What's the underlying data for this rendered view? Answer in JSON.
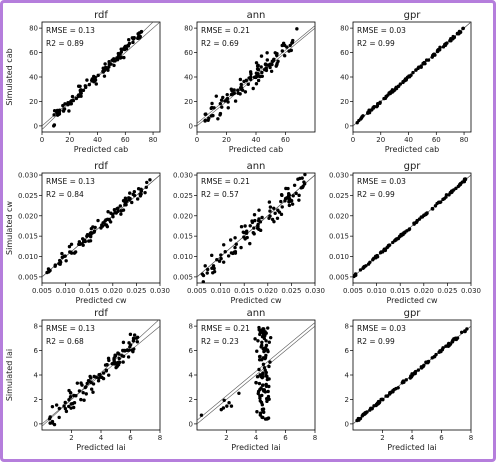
{
  "chart_data": [
    {
      "id": "cab-rdf",
      "type": "scatter",
      "title": "rdf",
      "xlabel": "Predicted cab",
      "ylabel": "Simulated cab",
      "xlim": [
        0,
        85
      ],
      "ylim": [
        -5,
        85
      ],
      "xticks": [
        0,
        20,
        40,
        60,
        80
      ],
      "yticks": [
        0,
        20,
        40,
        60,
        80
      ],
      "rmse": "RMSE = 0.13",
      "r2": "R2 = 0.89",
      "fit": {
        "slope": 1.1,
        "intercept": -3
      },
      "seed": 11,
      "spread": 0.09,
      "range": [
        8,
        72
      ],
      "n": 110
    },
    {
      "id": "cab-ann",
      "type": "scatter",
      "title": "ann",
      "xlabel": "Predicted cab",
      "ylabel": "",
      "xlim": [
        0,
        80
      ],
      "ylim": [
        -5,
        85
      ],
      "xticks": [
        0,
        20,
        40,
        60
      ],
      "yticks": [
        0,
        20,
        40,
        60,
        80
      ],
      "rmse": "RMSE = 0.21",
      "r2": "R2 = 0.69",
      "fit": {
        "slope": 1.0,
        "intercept": 2
      },
      "seed": 23,
      "spread": 0.16,
      "range": [
        5,
        68
      ],
      "n": 110
    },
    {
      "id": "cab-gpr",
      "type": "scatter",
      "title": "gpr",
      "xlabel": "Predicted cab",
      "ylabel": "",
      "xlim": [
        0,
        85
      ],
      "ylim": [
        -5,
        85
      ],
      "xticks": [
        0,
        20,
        40,
        60,
        80
      ],
      "yticks": [
        0,
        20,
        40,
        60,
        80
      ],
      "rmse": "RMSE = 0.03",
      "r2": "R2 = 0.99",
      "fit": {
        "slope": 1.0,
        "intercept": 0
      },
      "seed": 31,
      "spread": 0.02,
      "range": [
        3,
        80
      ],
      "n": 110
    },
    {
      "id": "cw-rdf",
      "type": "scatter",
      "title": "rdf",
      "xlabel": "Predicted cw",
      "ylabel": "Simulated cw",
      "xlim": [
        0.005,
        0.03
      ],
      "ylim": [
        0.0035,
        0.0305
      ],
      "xticks": [
        0.005,
        0.01,
        0.015,
        0.02,
        0.025,
        0.03
      ],
      "yticks": [
        0.005,
        0.01,
        0.015,
        0.02,
        0.025,
        0.03
      ],
      "rmse": "RMSE = 0.13",
      "r2": "R2 = 0.84",
      "fit": {
        "slope": 1.0,
        "intercept": 0
      },
      "seed": 41,
      "spread": 0.1,
      "range": [
        0.006,
        0.028
      ],
      "n": 110
    },
    {
      "id": "cw-ann",
      "type": "scatter",
      "title": "ann",
      "xlabel": "Predicted cw",
      "ylabel": "",
      "xlim": [
        0.005,
        0.03
      ],
      "ylim": [
        0.0035,
        0.0305
      ],
      "xticks": [
        0.005,
        0.01,
        0.015,
        0.02,
        0.025,
        0.03
      ],
      "yticks": [
        0.005,
        0.01,
        0.015,
        0.02,
        0.025,
        0.03
      ],
      "rmse": "RMSE = 0.21",
      "r2": "R2 = 0.57",
      "fit": {
        "slope": 1.0,
        "intercept": 0
      },
      "seed": 53,
      "spread": 0.17,
      "range": [
        0.006,
        0.028
      ],
      "n": 110
    },
    {
      "id": "cw-gpr",
      "type": "scatter",
      "title": "gpr",
      "xlabel": "Predicted cw",
      "ylabel": "",
      "xlim": [
        0.005,
        0.03
      ],
      "ylim": [
        0.0035,
        0.0305
      ],
      "xticks": [
        0.005,
        0.01,
        0.015,
        0.02,
        0.025,
        0.03
      ],
      "yticks": [
        0.005,
        0.01,
        0.015,
        0.02,
        0.025,
        0.03
      ],
      "rmse": "RMSE = 0.03",
      "r2": "R2 = 0.99",
      "fit": {
        "slope": 1.0,
        "intercept": 0
      },
      "seed": 61,
      "spread": 0.015,
      "range": [
        0.005,
        0.029
      ],
      "n": 110
    },
    {
      "id": "lai-rdf",
      "type": "scatter",
      "title": "rdf",
      "xlabel": "Predicted lai",
      "ylabel": "Simulated lai",
      "xlim": [
        0,
        8
      ],
      "ylim": [
        -0.5,
        8.5
      ],
      "xticks": [
        2,
        4,
        6,
        8
      ],
      "yticks": [
        0,
        2,
        4,
        6,
        8
      ],
      "rmse": "RMSE = 0.13",
      "r2": "R2 = 0.68",
      "fit": {
        "slope": 1.1,
        "intercept": -0.2
      },
      "seed": 71,
      "spread": 0.16,
      "range": [
        0.5,
        6.5
      ],
      "n": 110
    },
    {
      "id": "lai-ann",
      "type": "scatter",
      "title": "ann",
      "xlabel": "Predicted lai",
      "ylabel": "",
      "xlim": [
        0,
        8
      ],
      "ylim": [
        -0.5,
        8.5
      ],
      "xticks": [
        2,
        4,
        6,
        8
      ],
      "yticks": [
        0,
        2,
        4,
        6,
        8
      ],
      "rmse": "RMSE = 0.21",
      "r2": "R2 = 0.23",
      "fit": {
        "slope": 1.0,
        "intercept": 0.3
      },
      "seed": 83,
      "spread": 0.2,
      "range": [
        3.6,
        5.4
      ],
      "n": 110,
      "vertical": true
    },
    {
      "id": "lai-gpr",
      "type": "scatter",
      "title": "gpr",
      "xlabel": "Predicted lai",
      "ylabel": "",
      "xlim": [
        0,
        8
      ],
      "ylim": [
        -0.5,
        8.5
      ],
      "xticks": [
        2,
        4,
        6,
        8
      ],
      "yticks": [
        0,
        2,
        4,
        6,
        8
      ],
      "rmse": "RMSE = 0.03",
      "r2": "R2 = 0.99",
      "fit": {
        "slope": 1.0,
        "intercept": 0
      },
      "seed": 97,
      "spread": 0.02,
      "range": [
        0.2,
        7.8
      ],
      "n": 110
    }
  ],
  "colors": {
    "frame": "#b57edc",
    "points": "#000000",
    "fit": "#555555"
  }
}
